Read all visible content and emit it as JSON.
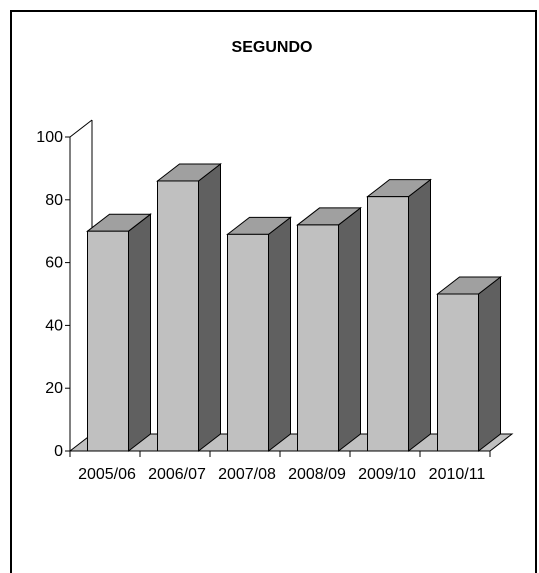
{
  "chart_data": {
    "type": "bar",
    "title": "SEGUNDO",
    "categories": [
      "2005/06",
      "2006/07",
      "2007/08",
      "2008/09",
      "2009/10",
      "2010/11"
    ],
    "values": [
      70,
      86,
      69,
      72,
      81,
      50
    ],
    "y_ticks": [
      "0",
      "20",
      "40",
      "60",
      "80",
      "100"
    ],
    "ylim": [
      0,
      100
    ],
    "xlabel": "",
    "ylabel": "",
    "grid": false,
    "legend": "none",
    "colors": {
      "front": "#c0c0c0",
      "top": "#a0a0a0",
      "side": "#606060",
      "floor": "#c0c0c0"
    }
  }
}
